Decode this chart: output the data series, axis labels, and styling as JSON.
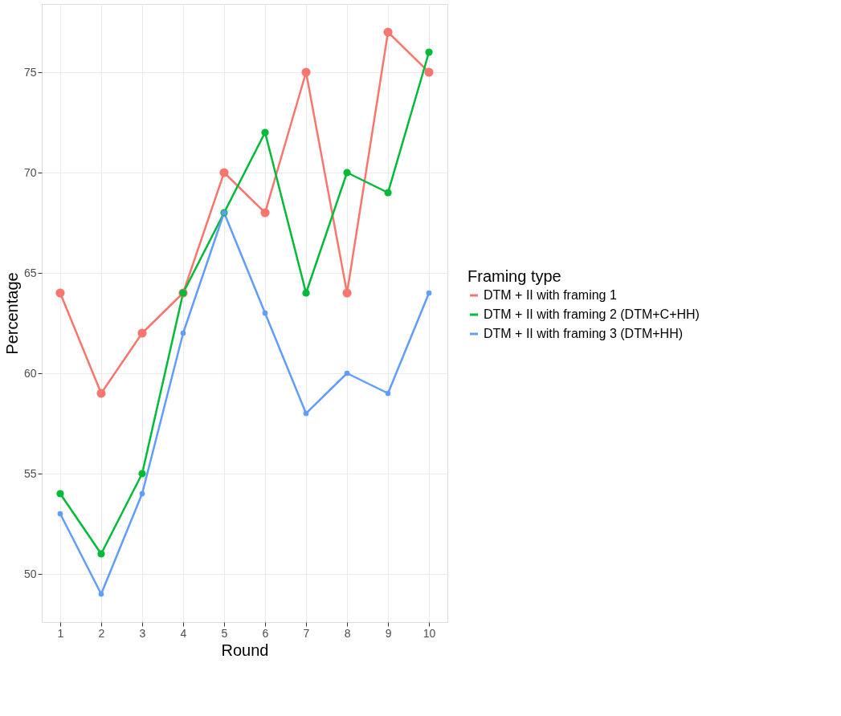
{
  "chart_data": {
    "type": "line",
    "xlabel": "Round",
    "ylabel": "Percentage",
    "legend_title": "Framing type",
    "x": [
      1,
      2,
      3,
      4,
      5,
      6,
      7,
      8,
      9,
      10
    ],
    "series": [
      {
        "name": "DTM + II with framing 1",
        "color": "#f8766d",
        "values": [
          64,
          59,
          62,
          64,
          70,
          68,
          75,
          64,
          77,
          75
        ]
      },
      {
        "name": "DTM + II with framing 2 (DTM+C+HH)",
        "color": "#00ba38",
        "values": [
          54,
          51,
          55,
          64,
          68,
          72,
          64,
          70,
          69,
          76
        ]
      },
      {
        "name": "DTM + II with framing 3 (DTM+HH)",
        "color": "#619cff",
        "values": [
          53,
          49,
          54,
          62,
          68,
          63,
          58,
          60,
          59,
          64
        ]
      }
    ],
    "xlim": [
      0.55,
      10.45
    ],
    "xticks": [
      1,
      2,
      3,
      4,
      5,
      6,
      7,
      8,
      9,
      10
    ],
    "ylim": [
      47.6,
      78.4
    ],
    "yticks": [
      50,
      55,
      60,
      65,
      70,
      75
    ],
    "grid": true,
    "legend": "right",
    "marker": "circle",
    "line_style": "solid"
  }
}
